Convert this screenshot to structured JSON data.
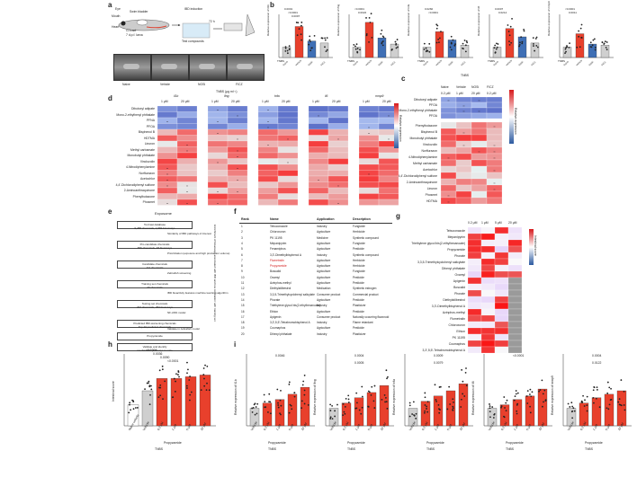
{
  "panels": {
    "a": {
      "label": "a",
      "labels": [
        "Eye",
        "Swim bladder",
        "IBD induction",
        "Mouth",
        "Heart",
        "GI tract",
        "7 d.p.f. larva",
        "Test compounds",
        "72 h"
      ],
      "row_labels": [
        "Naive",
        "Vehicle",
        "NOSi",
        "FICZ"
      ],
      "unit": "TNBS (μg ml⁻¹)"
    },
    "b": {
      "label": "b",
      "genes": [
        "il1b",
        "ifng",
        "tnfa",
        "il6",
        "mmp9"
      ],
      "groups": [
        "Naive",
        "Vehicle",
        "NOSi",
        "FICZ"
      ],
      "sig": [
        [
          "0.0001",
          "<0.0001",
          "0.0097"
        ],
        [
          "<0.0001",
          "0.0022"
        ],
        [
          "0.0260",
          "<0.0001"
        ],
        [
          "0.0007",
          "0.0214"
        ],
        [
          "<0.0001",
          "0.0011"
        ]
      ],
      "ylabel_prefix": "Relative expression of",
      "xlab": "TNBS",
      "chart_data": {
        "type": "bar",
        "categories": [
          "Naive",
          "Vehicle",
          "NOSi",
          "FICZ"
        ],
        "series": [
          {
            "name": "il1b",
            "values": [
              1.0,
              3.0,
              1.6,
              1.4
            ]
          },
          {
            "name": "ifng",
            "values": [
              1.0,
              3.4,
              1.9,
              1.3
            ]
          },
          {
            "name": "tnfa",
            "values": [
              1.0,
              2.5,
              1.7,
              1.2
            ]
          },
          {
            "name": "il6",
            "values": [
              1.0,
              2.8,
              2.0,
              1.4
            ]
          },
          {
            "name": "mmp9",
            "values": [
              1.0,
              2.3,
              1.3,
              1.2
            ]
          }
        ]
      }
    },
    "c": {
      "label": "c",
      "top_header": "TNBS",
      "col_header": [
        "Naive",
        "Vehicle",
        "NOSi",
        "FICZ"
      ],
      "sub_header": [
        "0.2 μM",
        "1 μM",
        "20 μM",
        "0.2 μM"
      ],
      "rows_top": [
        "Dibutoxyl adipate",
        "PFOA",
        "Mono-2-ethylhexyl phthalate",
        "PFOA"
      ],
      "rows_bottom": [
        "Phenylbutazone",
        "Bisphenol B",
        "Monobutyl phthalate",
        "Vinclozolin",
        "Norflurazon",
        "4-Nitrodiphenylamine",
        "Methyl carbamate",
        "Acetochlor",
        "4,4'-Dichlorodiphenyl sulfone",
        "2-Aminoanthraquinone",
        "Linuron",
        "Phosmet",
        "HDTMA"
      ],
      "colorbar_label": "Relative expression"
    },
    "d": {
      "label": "d",
      "genes": [
        "il1b",
        "ifng",
        "tnfa",
        "il6",
        "mmp9"
      ],
      "concs": [
        "1 μM",
        "20 μM"
      ],
      "rows": [
        "Dibutoxyl adipate",
        "Mono-2-ethylhexyl phthalate",
        "PFNA",
        "PFOA",
        "Bisphenol B",
        "HDTMA",
        "Linuron",
        "Methyl carbamate",
        "Monobutyl phthalate",
        "Vinclozolin",
        "4-Nitrodiphenylamine",
        "Norflurazon",
        "Acetochlor",
        "4,4'-Dichlorodiphenyl sulfone",
        "2-Aminoanthraquinone",
        "Phenylbutazone",
        "Phosmet"
      ],
      "colorbar_label": "Relative expression"
    },
    "e": {
      "label": "e",
      "title": "Exposome",
      "steps": [
        "ToxCast database\n9,288 chemicals, 1,569 bioassays",
        "Pro-candidate chemicals\n836 chemicals, 48 bioassays",
        "Candidate chemicals\n111 chemicals",
        "Training set chemicals\n20 chemicals",
        "Testing set chemicals\n297 chemicals, 253 bioassays",
        "Predicted IBD-worsening chemicals\nTop 20 predicted chemicals",
        "Propyzamide",
        "Validate and identify\nmechanistic pathways in mice"
      ],
      "side": [
        "Similarity of IBD pathways of interest",
        "Prioritization (exposure and high production volume)",
        "Zebrafish screening",
        "IBD bioactivity features machine learning algorithm",
        "NF-ANN model",
        "Validate in zebrafish model"
      ],
      "vertical": "Enrichment of bioassays associated with IBD and low correlation with training set"
    },
    "f": {
      "label": "f",
      "headers": [
        "Rank",
        "Name",
        "Application",
        "Description"
      ],
      "rows": [
        [
          "1",
          "Tebuconazole",
          "Industry",
          "Fungicide"
        ],
        [
          "2",
          "Chloroxuron",
          "Agriculture",
          "Herbicide"
        ],
        [
          "3",
          "PK 11195",
          "Medicine",
          "Synthetic compound"
        ],
        [
          "4",
          "Mepanipyrim",
          "Agriculture",
          "Fungicide"
        ],
        [
          "5",
          "Fenamiphos",
          "Agriculture",
          "Pesticide"
        ],
        [
          "6",
          "3,3'-Dimethylbisphenol A",
          "Industry",
          "Synthetic compound"
        ],
        [
          "7",
          "Flumetralin",
          "Agriculture",
          "Herbicide"
        ],
        [
          "8",
          "Propyzamide",
          "Agriculture",
          "Herbicide"
        ],
        [
          "9",
          "Boscalid",
          "Agriculture",
          "Fungicide"
        ],
        [
          "10",
          "Oxamyl",
          "Agriculture",
          "Pesticide"
        ],
        [
          "11",
          "Azinphos-methyl",
          "Agriculture",
          "Pesticide"
        ],
        [
          "12",
          "Diethylstilbestrol",
          "Medication",
          "Synthetic estrogen"
        ],
        [
          "13",
          "3,3,5-Trimethylcyclohexyl salicylate",
          "Consumer product",
          "Commercial product"
        ],
        [
          "14",
          "Phorate",
          "Agriculture",
          "Pesticide"
        ],
        [
          "15",
          "Triethylene glycol bis(2-ethylhexanoate)",
          "Industry",
          "Plasticizer"
        ],
        [
          "16",
          "Ethion",
          "Agriculture",
          "Pesticide"
        ],
        [
          "17",
          "Apigenin",
          "Consumer product",
          "Naturally occurring flavonoid"
        ],
        [
          "18",
          "3,3',5,5'-Tetrabromobisphenol A",
          "Industry",
          "Flame retardant"
        ],
        [
          "19",
          "Coumaphos",
          "Agriculture",
          "Pesticide"
        ],
        [
          "20",
          "Dihexyl phthalate",
          "Industry",
          "Plasticizer"
        ]
      ]
    },
    "g": {
      "label": "g",
      "concs": [
        "0.2 μM",
        "1 μM",
        "5 μM",
        "20 μM"
      ],
      "rows": [
        "Tebuconazole",
        "Mepanipyrim",
        "Triethylene glycol bis(2-ethylhexanoate)",
        "Propyzamide",
        "Phorate",
        "3,3,5-Trimethylcyclohexyl salicylate",
        "Dihexyl phthalate",
        "Oxamyl",
        "Apigenin",
        "Boscalid",
        "Phorate",
        "Diethylstilbestrol",
        "3,3'-Dimethylbisphenol A",
        "Azinphos-methyl",
        "Flumetralin",
        "Chloroxuron",
        "Ethion",
        "PK 11195",
        "Coumaphos",
        "3,3',5,5'-Tetrabromobisphenol A"
      ],
      "colorbar_label": "Intestinal score"
    },
    "h": {
      "label": "h",
      "ylabel": "Intestinal score",
      "sig": [
        "<0.0001",
        "0.0036",
        "0.0090",
        "<0.0001"
      ],
      "xlab_group": "Propyzamide",
      "xlab_tnbs": "TNBS",
      "chart_data": {
        "type": "bar",
        "categories": [
          "Naive vehicle",
          "Vehicle",
          "0.2 μM",
          "1 μM",
          "5 μM",
          "20 μM"
        ],
        "values": [
          1.2,
          2.0,
          2.7,
          2.7,
          2.8,
          2.9
        ],
        "ylim": [
          0,
          4
        ]
      }
    },
    "i": {
      "label": "i",
      "genes": [
        "il1b",
        "ifng",
        "tnfa",
        "il6",
        "mmp9"
      ],
      "sig": [
        [
          "0.0046"
        ],
        [
          "0.0004",
          "0.0005"
        ],
        [
          "0.0009",
          "0.0079"
        ],
        [
          "<0.0001"
        ],
        [
          "0.0004",
          "0.0122"
        ]
      ],
      "xlab_group": "Propyzamide",
      "xlab_tnbs": "TNBS",
      "ylabel_prefix": "Relative expression of",
      "chart_data": {
        "type": "bar",
        "categories": [
          "Vehicle",
          "0.2 μM",
          "1 μM",
          "5 μM",
          "20 μM"
        ],
        "series": [
          {
            "name": "il1b",
            "values": [
              1.0,
              1.3,
              1.5,
              1.8,
              2.2
            ]
          },
          {
            "name": "ifng",
            "values": [
              1.0,
              1.3,
              1.6,
              1.9,
              2.3
            ]
          },
          {
            "name": "tnfa",
            "values": [
              1.0,
              1.4,
              1.7,
              2.0,
              2.4
            ]
          },
          {
            "name": "il6",
            "values": [
              1.0,
              1.2,
              1.5,
              1.7,
              2.1
            ]
          },
          {
            "name": "mmp9",
            "values": [
              1.0,
              1.3,
              1.6,
              1.8,
              2.0
            ]
          }
        ]
      }
    }
  },
  "colors": {
    "bar_gray": "#cfcfcf",
    "bar_red": "#e8402c",
    "bar_blue": "#3f6fb5",
    "heat_red": "#d7191c",
    "heat_blue": "#2c5aa0",
    "highlight_red": "#d42020"
  }
}
